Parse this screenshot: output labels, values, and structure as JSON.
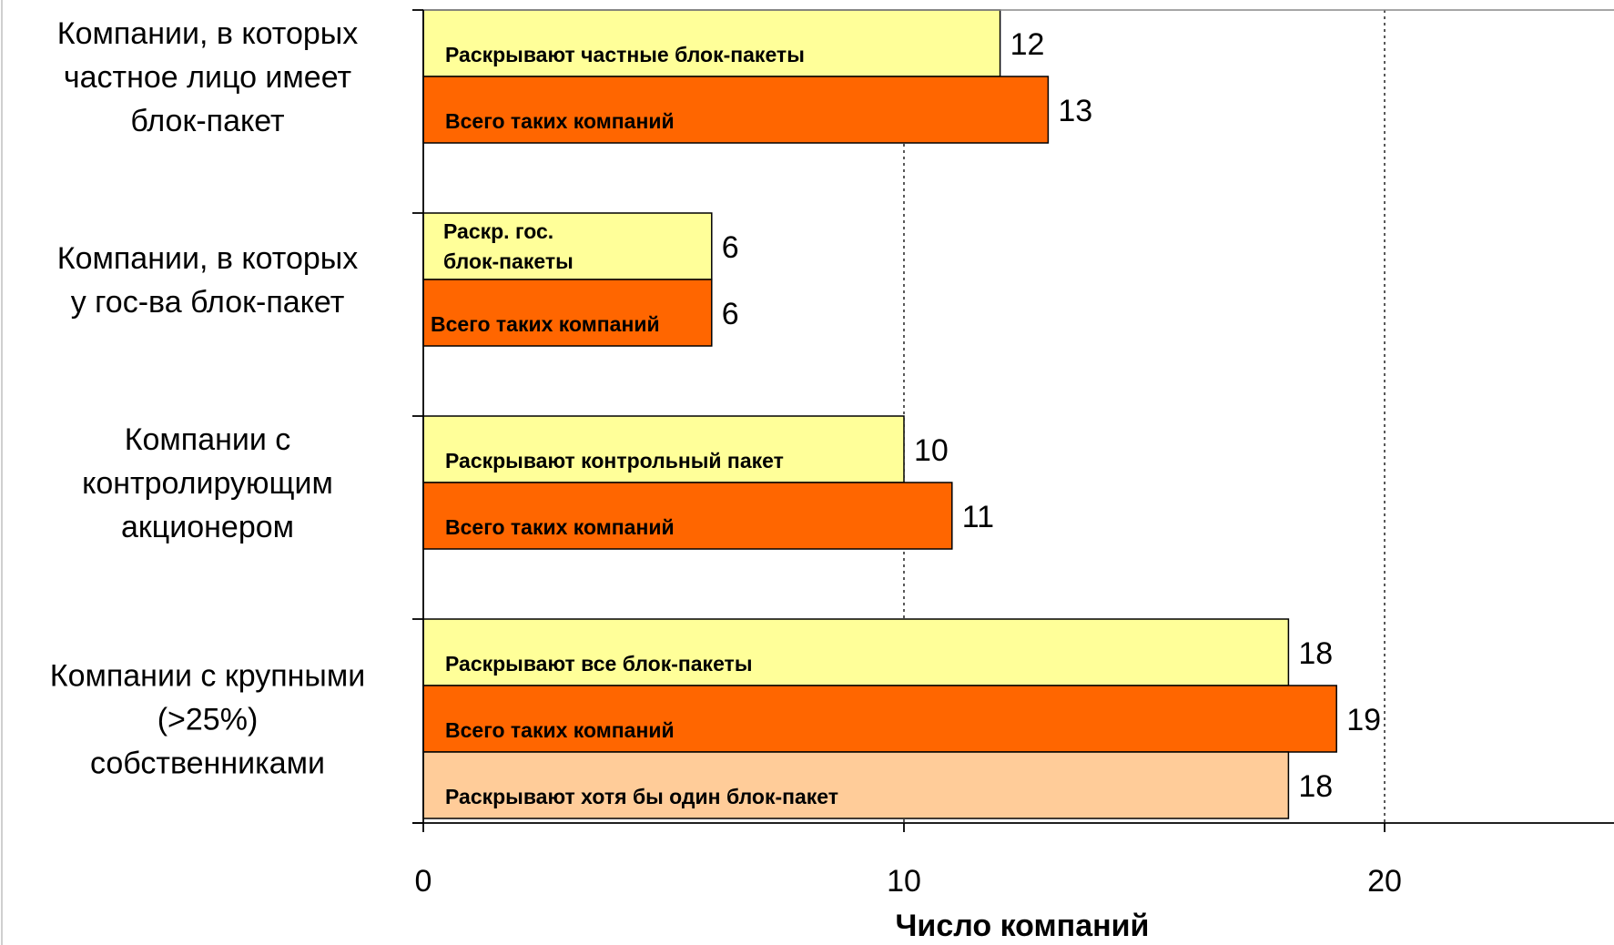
{
  "colors": {
    "light_yellow": "#FFFF99",
    "orange": "#FF6600",
    "peach": "#FFCC99",
    "outline": "#000000"
  },
  "chart_data": {
    "type": "bar",
    "orientation": "horizontal",
    "xlabel": "Число компаний",
    "xlim": [
      0,
      25
    ],
    "xticks": [
      0,
      10,
      20
    ],
    "grid": "dashed vertical lines at 10 and 20",
    "groups": [
      {
        "label_lines": [
          "Компании, в которых",
          "частное лицо имеет",
          "блок-пакет"
        ],
        "bars": [
          {
            "label_lines": [
              "Раскрывают частные блок-пакеты"
            ],
            "value": 12,
            "color": "#FFFF99"
          },
          {
            "label_lines": [
              "Всего таких компаний"
            ],
            "value": 13,
            "color": "#FF6600"
          }
        ]
      },
      {
        "label_lines": [
          "Компании, в которых",
          "у гос-ва блок-пакет"
        ],
        "bars": [
          {
            "label_lines": [
              "Раскр. гос.",
              "блок-пакеты"
            ],
            "value": 6,
            "color": "#FFFF99"
          },
          {
            "label_lines": [
              "Всего таких компаний"
            ],
            "value": 6,
            "color": "#FF6600"
          }
        ]
      },
      {
        "label_lines": [
          "Компании с",
          "контролирующим",
          "акционером"
        ],
        "bars": [
          {
            "label_lines": [
              "Раскрывают контрольный пакет"
            ],
            "value": 10,
            "color": "#FFFF99"
          },
          {
            "label_lines": [
              "Всего таких компаний"
            ],
            "value": 11,
            "color": "#FF6600"
          }
        ]
      },
      {
        "label_lines": [
          "Компании с крупными",
          "(>25%)",
          "собственниками"
        ],
        "bars": [
          {
            "label_lines": [
              "Раскрывают все блок-пакеты"
            ],
            "value": 18,
            "color": "#FFFF99"
          },
          {
            "label_lines": [
              "Всего таких компаний"
            ],
            "value": 19,
            "color": "#FF6600"
          },
          {
            "label_lines": [
              "Раскрывают хотя бы один блок-пакет"
            ],
            "value": 18,
            "color": "#FFCC99"
          }
        ]
      }
    ]
  }
}
